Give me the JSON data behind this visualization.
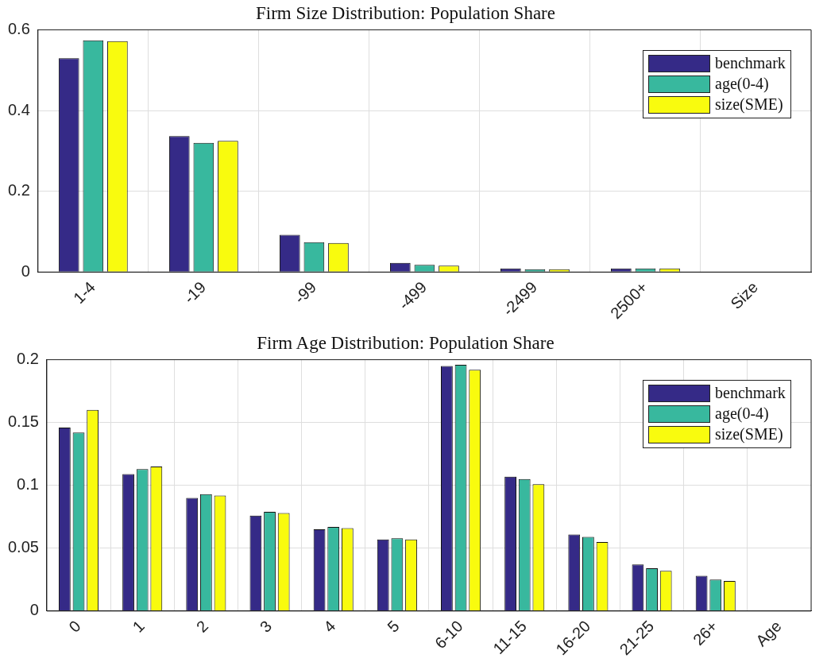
{
  "chart_data": [
    {
      "type": "bar",
      "title": "Firm Size Distribution: Population Share",
      "categories": [
        "1-4",
        "-19",
        "-99",
        "-499",
        "-2499",
        "2500+",
        "Size"
      ],
      "series": [
        {
          "name": "benchmark",
          "color": "#352a87",
          "values": [
            0.53,
            0.337,
            0.092,
            0.023,
            0.009,
            0.009,
            null
          ]
        },
        {
          "name": "age(0-4)",
          "color": "#38b89e",
          "values": [
            0.574,
            0.32,
            0.074,
            0.018,
            0.007,
            0.009,
            null
          ]
        },
        {
          "name": "size(SME)",
          "color": "#f9fb0e",
          "values": [
            0.572,
            0.325,
            0.072,
            0.016,
            0.007,
            0.009,
            null
          ]
        }
      ],
      "ylim": [
        0,
        0.6
      ],
      "yticks": [
        0,
        0.2,
        0.4,
        0.6
      ],
      "grid": true,
      "legend": "top right"
    },
    {
      "type": "bar",
      "title": "Firm Age Distribution: Population Share",
      "categories": [
        "0",
        "1",
        "2",
        "3",
        "4",
        "5",
        "6-10",
        "11-15",
        "16-20",
        "21-25",
        "26+",
        "Age"
      ],
      "series": [
        {
          "name": "benchmark",
          "color": "#352a87",
          "values": [
            0.146,
            0.109,
            0.09,
            0.076,
            0.065,
            0.057,
            0.195,
            0.107,
            0.061,
            0.037,
            0.028,
            null
          ]
        },
        {
          "name": "age(0-4)",
          "color": "#38b89e",
          "values": [
            0.142,
            0.113,
            0.093,
            0.079,
            0.067,
            0.058,
            0.196,
            0.105,
            0.059,
            0.034,
            0.025,
            null
          ]
        },
        {
          "name": "size(SME)",
          "color": "#f9fb0e",
          "values": [
            0.16,
            0.115,
            0.092,
            0.078,
            0.066,
            0.057,
            0.192,
            0.101,
            0.055,
            0.032,
            0.024,
            null
          ]
        }
      ],
      "ylim": [
        0,
        0.2
      ],
      "yticks": [
        0,
        0.05,
        0.1,
        0.15,
        0.2
      ],
      "grid": true,
      "legend": "top right"
    }
  ]
}
